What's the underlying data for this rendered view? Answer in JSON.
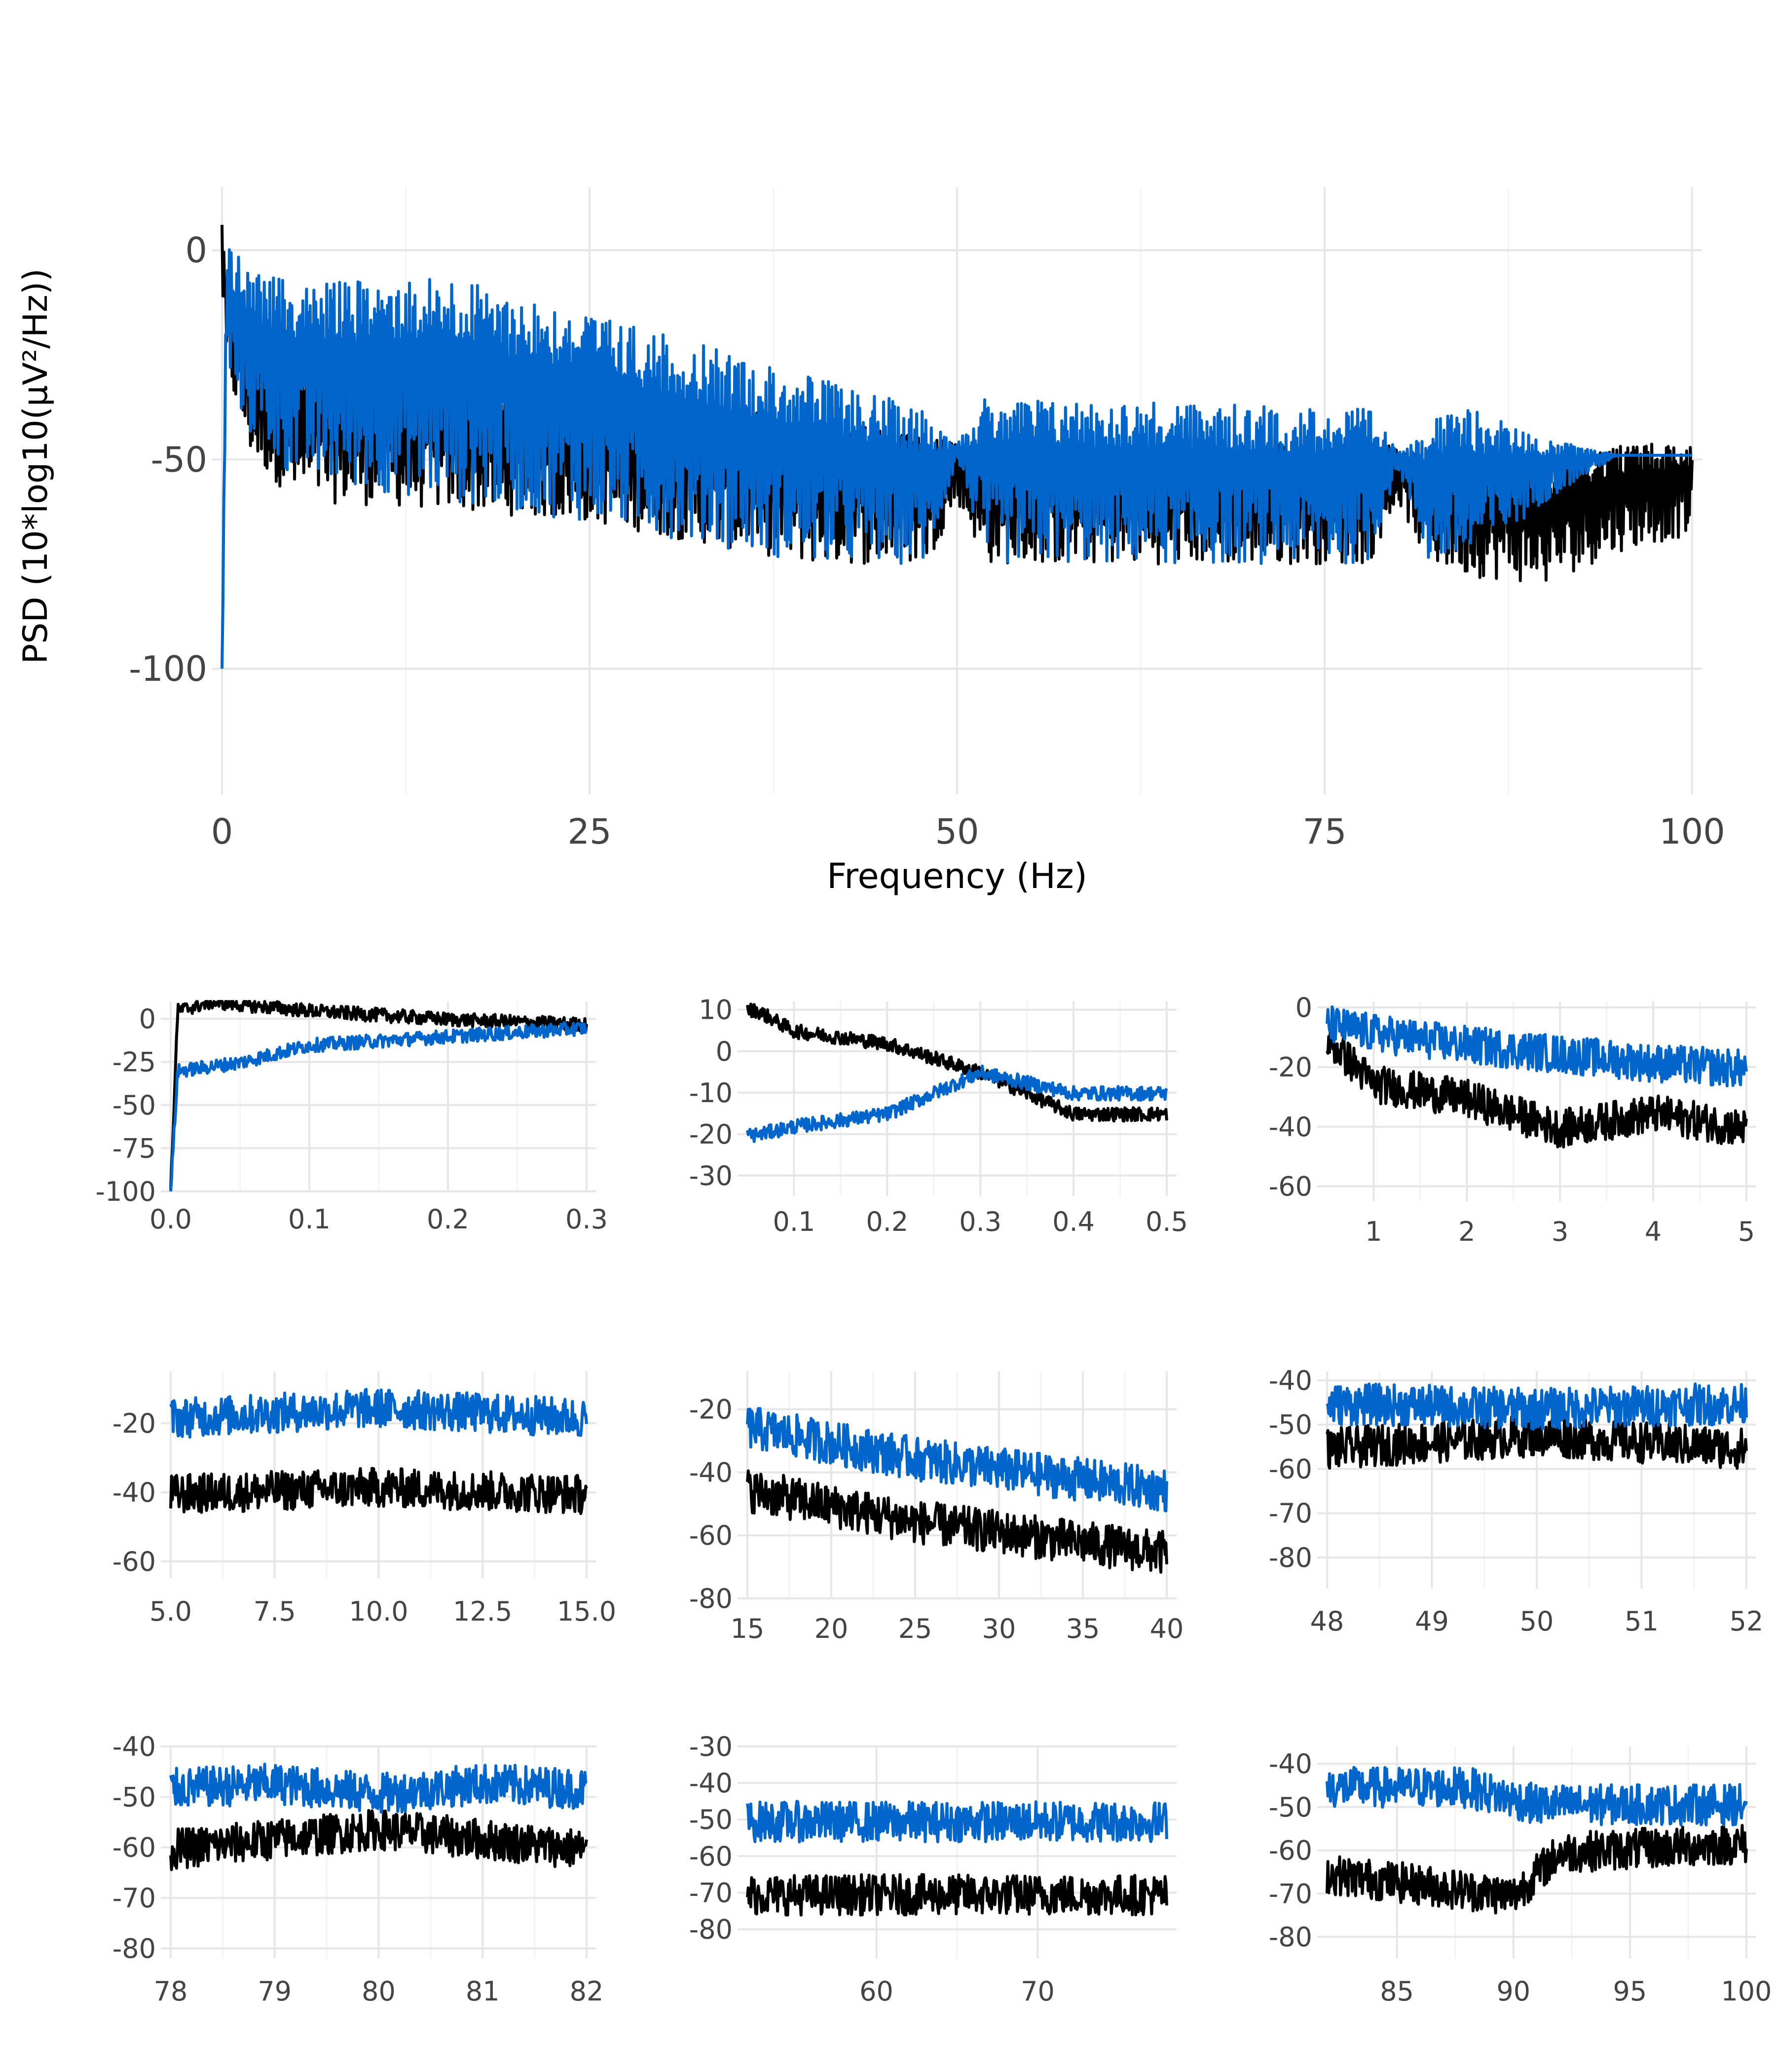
{
  "colors": {
    "series_black": "#000000",
    "series_blue": "#0066cc",
    "grid": "#e6e6e6",
    "grid_minor": "#f3f3f3",
    "tick_text": "#444444"
  },
  "chart_data": [
    {
      "type": "line",
      "xlabel": "Frequency (Hz)",
      "ylabel": "PSD (10*log10(μV²/Hz))",
      "xlim": [
        0,
        100
      ],
      "ylim": [
        -130,
        15
      ],
      "xticks": [
        0,
        25,
        50,
        75,
        100
      ],
      "yticks": [
        0,
        -50,
        -100
      ],
      "grid": true,
      "series": [
        {
          "color": "#000000",
          "approx_envelope": {
            "x": [
              0,
              0.3,
              2,
              5,
              15,
              25,
              40,
              48,
              50,
              52,
              78,
              80,
              82,
              85,
              90,
              95,
              100
            ],
            "upper": [
              10,
              -5,
              -20,
              -25,
              -30,
              -35,
              -40,
              -45,
              -46,
              -46,
              -46,
              -47,
              -48,
              -48,
              -50,
              -46,
              -46
            ],
            "lower": [
              -10,
              -30,
              -50,
              -60,
              -62,
              -65,
              -75,
              -75,
              -60,
              -75,
              -75,
              -60,
              -75,
              -78,
              -80,
              -72,
              -68
            ]
          }
        },
        {
          "color": "#0066cc",
          "approx_envelope": {
            "x": [
              0,
              0.3,
              2,
              5,
              15,
              25,
              40,
              48,
              50,
              52,
              78,
              80,
              82,
              85,
              90,
              95,
              100
            ],
            "upper": [
              -100,
              2,
              -5,
              -8,
              -6,
              -15,
              -30,
              -38,
              -46,
              -35,
              -38,
              -48,
              -40,
              -38,
              -45,
              -49,
              -49
            ],
            "lower": [
              -100,
              -30,
              -45,
              -55,
              -60,
              -65,
              -75,
              -75,
              -50,
              -75,
              -75,
              -52,
              -75,
              -75,
              -60,
              -49,
              -49
            ]
          }
        }
      ]
    },
    {
      "type": "line",
      "xlim": [
        0,
        0.3
      ],
      "ylim": [
        -100,
        10
      ],
      "xticks": [
        "0.0",
        "0.1",
        "0.2",
        "0.3"
      ],
      "yticks": [
        "0",
        "-25",
        "-50",
        "-75",
        "-100"
      ],
      "series": [
        {
          "color": "#000000",
          "approx": {
            "x": [
              0,
              0.005,
              0.03,
              0.1,
              0.2,
              0.3
            ],
            "y": [
              -100,
              5,
              10,
              5,
              0,
              -3
            ]
          }
        },
        {
          "color": "#0066cc",
          "approx": {
            "x": [
              0,
              0.005,
              0.05,
              0.1,
              0.2,
              0.3
            ],
            "y": [
              -100,
              -30,
              -25,
              -15,
              -10,
              -5
            ]
          }
        }
      ]
    },
    {
      "type": "line",
      "xlim": [
        0.05,
        0.5
      ],
      "ylim": [
        -35,
        12
      ],
      "xticks": [
        "0.1",
        "0.2",
        "0.3",
        "0.4",
        "0.5"
      ],
      "yticks": [
        "10",
        "0",
        "-10",
        "-20",
        "-30"
      ],
      "series": [
        {
          "color": "#000000",
          "approx": {
            "x": [
              0.06,
              0.1,
              0.2,
              0.3,
              0.4,
              0.5
            ],
            "y": [
              10,
              5,
              2,
              -5,
              -15,
              -15
            ]
          }
        },
        {
          "color": "#0066cc",
          "approx": {
            "x": [
              0.06,
              0.1,
              0.2,
              0.3,
              0.4,
              0.5
            ],
            "y": [
              -20,
              -18,
              -15,
              -5,
              -10,
              -10
            ]
          }
        }
      ]
    },
    {
      "type": "line",
      "xlim": [
        0.5,
        5
      ],
      "ylim": [
        -65,
        2
      ],
      "xticks": [
        "1",
        "2",
        "3",
        "4",
        "5"
      ],
      "yticks": [
        "0",
        "-20",
        "-40",
        "-60"
      ],
      "series": [
        {
          "color": "#000000",
          "approx": {
            "x": [
              0.5,
              1,
              2,
              3,
              4,
              5
            ],
            "y": [
              -10,
              -25,
              -30,
              -40,
              -35,
              -40
            ]
          }
        },
        {
          "color": "#0066cc",
          "approx": {
            "x": [
              0.5,
              1,
              2,
              3,
              4,
              5
            ],
            "y": [
              -5,
              -8,
              -12,
              -15,
              -18,
              -20
            ]
          }
        }
      ]
    },
    {
      "type": "line",
      "xlim": [
        5,
        15
      ],
      "ylim": [
        -65,
        -5
      ],
      "xticks": [
        "5.0",
        "7.5",
        "10.0",
        "12.5",
        "15.0"
      ],
      "yticks": [
        "-20",
        "-40",
        "-60"
      ],
      "series": [
        {
          "color": "#000000",
          "approx": {
            "x": [
              5,
              10,
              15
            ],
            "y": [
              -40,
              -38,
              -40
            ]
          }
        },
        {
          "color": "#0066cc",
          "approx": {
            "x": [
              5,
              10,
              15
            ],
            "y": [
              -18,
              -15,
              -18
            ]
          }
        }
      ]
    },
    {
      "type": "line",
      "xlim": [
        15,
        40
      ],
      "ylim": [
        -80,
        -8
      ],
      "xticks": [
        "15",
        "20",
        "25",
        "30",
        "35",
        "40"
      ],
      "yticks": [
        "-20",
        "-40",
        "-60",
        "-80"
      ],
      "series": [
        {
          "color": "#000000",
          "approx": {
            "x": [
              15,
              25,
              40
            ],
            "y": [
              -45,
              -55,
              -65
            ]
          }
        },
        {
          "color": "#0066cc",
          "approx": {
            "x": [
              15,
              25,
              40
            ],
            "y": [
              -25,
              -35,
              -45
            ]
          }
        }
      ]
    },
    {
      "type": "line",
      "xlim": [
        48,
        52
      ],
      "ylim": [
        -87,
        -38
      ],
      "xticks": [
        "48",
        "49",
        "50",
        "51",
        "52"
      ],
      "yticks": [
        "-40",
        "-50",
        "-60",
        "-70",
        "-80"
      ],
      "series": [
        {
          "color": "#000000",
          "approx": {
            "x": [
              48,
              50,
              52
            ],
            "y": [
              -55,
              -52,
              -55
            ]
          }
        },
        {
          "color": "#0066cc",
          "approx": {
            "x": [
              48,
              48.5,
              50,
              51.5,
              52
            ],
            "y": [
              -45,
              -45,
              -46,
              -45,
              -45
            ]
          }
        }
      ]
    },
    {
      "type": "line",
      "xlim": [
        78,
        82
      ],
      "ylim": [
        -82,
        -40
      ],
      "xticks": [
        "78",
        "79",
        "80",
        "81",
        "82"
      ],
      "yticks": [
        "-40",
        "-50",
        "-60",
        "-70",
        "-80"
      ],
      "series": [
        {
          "color": "#000000",
          "approx": {
            "x": [
              78,
              80,
              82
            ],
            "y": [
              -60,
              -56,
              -60
            ]
          }
        },
        {
          "color": "#0066cc",
          "approx": {
            "x": [
              78,
              79,
              80,
              81,
              82
            ],
            "y": [
              -48,
              -47,
              -49,
              -47,
              -48
            ]
          }
        }
      ]
    },
    {
      "type": "line",
      "xlim": [
        52,
        78
      ],
      "ylim": [
        -88,
        -30
      ],
      "xticks": [
        "60",
        "70"
      ],
      "yticks": [
        "-30",
        "-40",
        "-50",
        "-60",
        "-70",
        "-80"
      ],
      "series": [
        {
          "color": "#000000",
          "approx": {
            "x": [
              52,
              65,
              78
            ],
            "y": [
              -70,
              -70,
              -70
            ]
          }
        },
        {
          "color": "#0066cc",
          "approx": {
            "x": [
              52,
              65,
              78
            ],
            "y": [
              -50,
              -50,
              -50
            ]
          }
        }
      ]
    },
    {
      "type": "line",
      "xlim": [
        82,
        100
      ],
      "ylim": [
        -85,
        -36
      ],
      "xticks": [
        "85",
        "90",
        "95",
        "100"
      ],
      "yticks": [
        "-40",
        "-50",
        "-60",
        "-70",
        "-80"
      ],
      "series": [
        {
          "color": "#000000",
          "approx": {
            "x": [
              82,
              90,
              92,
              100
            ],
            "y": [
              -65,
              -70,
              -60,
              -58
            ]
          }
        },
        {
          "color": "#0066cc",
          "approx": {
            "x": [
              82,
              88,
              91,
              100
            ],
            "y": [
              -45,
              -45,
              -49,
              -49
            ]
          }
        }
      ]
    }
  ]
}
